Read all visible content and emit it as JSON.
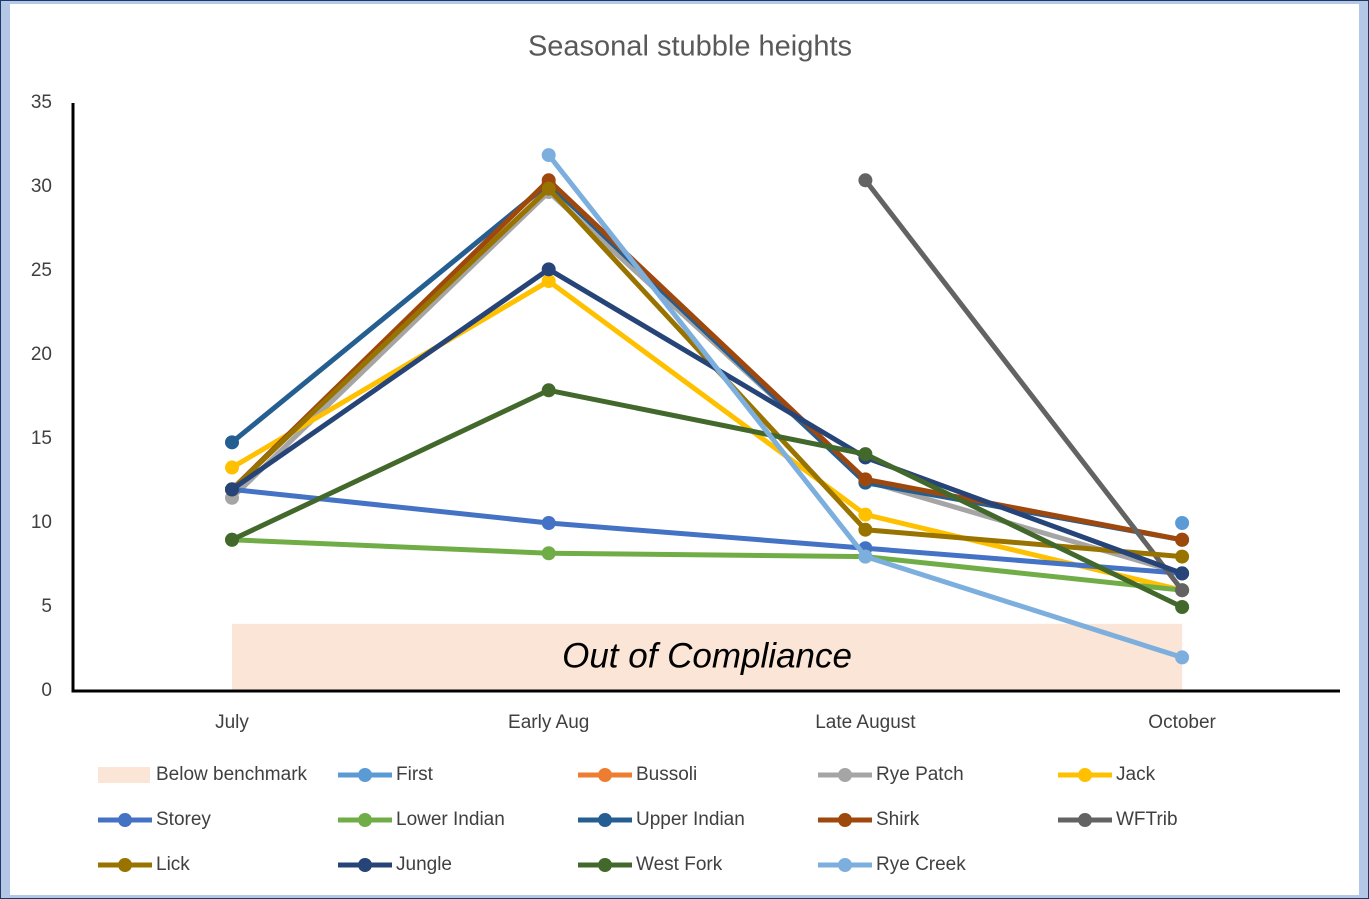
{
  "chart_data": {
    "type": "line",
    "title": "Seasonal stubble heights",
    "categories": [
      "July",
      "Early Aug",
      "Late August",
      "October"
    ],
    "ylim": [
      0,
      35
    ],
    "yticks": [
      0,
      5,
      10,
      15,
      20,
      25,
      30,
      35
    ],
    "benchmark": {
      "name": "Below benchmark",
      "value": 4,
      "color": "#fbe5d6"
    },
    "annotation": "Out of Compliance",
    "series": [
      {
        "name": "First",
        "color": "#5b9bd5",
        "values": [
          null,
          null,
          null,
          10
        ]
      },
      {
        "name": "Bussoli",
        "color": "#ed7d31",
        "values": [
          null,
          null,
          null,
          null
        ]
      },
      {
        "name": "Rye Patch",
        "color": "#a5a5a5",
        "values": [
          11.5,
          29.7,
          12.5,
          7
        ]
      },
      {
        "name": "Jack",
        "color": "#ffc000",
        "values": [
          13.3,
          24.4,
          10.5,
          6
        ]
      },
      {
        "name": "Storey",
        "color": "#4472c4",
        "values": [
          12,
          10,
          8.5,
          7
        ]
      },
      {
        "name": "Lower Indian",
        "color": "#70ad47",
        "values": [
          9,
          8.2,
          8,
          6
        ]
      },
      {
        "name": "Upper Indian",
        "color": "#255e91",
        "values": [
          14.8,
          30.2,
          12.4,
          9
        ]
      },
      {
        "name": "Shirk",
        "color": "#9e480e",
        "values": [
          12,
          30.4,
          12.6,
          9
        ]
      },
      {
        "name": "WFTrib",
        "color": "#636363",
        "values": [
          null,
          null,
          30.4,
          6
        ]
      },
      {
        "name": "Lick",
        "color": "#997300",
        "values": [
          12,
          29.9,
          9.6,
          8
        ]
      },
      {
        "name": "Jungle",
        "color": "#264478",
        "values": [
          12,
          25.1,
          13.9,
          7
        ]
      },
      {
        "name": "West Fork",
        "color": "#43682b",
        "values": [
          9,
          17.9,
          14.1,
          5
        ]
      },
      {
        "name": "Rye Creek",
        "color": "#7cafdd",
        "values": [
          null,
          31.9,
          8,
          2
        ]
      }
    ]
  }
}
